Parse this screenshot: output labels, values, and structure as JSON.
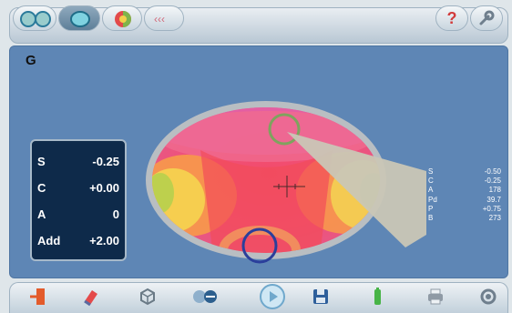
{
  "view": {
    "eye": "G"
  },
  "params": [
    {
      "key": "S",
      "value": "-0.25"
    },
    {
      "key": "C",
      "value": "+0.00"
    },
    {
      "key": "A",
      "value": "0"
    },
    {
      "key": "Add",
      "value": "+2.00"
    }
  ],
  "stats": [
    {
      "key": "S",
      "value": "-0.50"
    },
    {
      "key": "C",
      "value": "-0.25"
    },
    {
      "key": "A",
      "value": "178"
    },
    {
      "key": "Pd",
      "value": "39.7"
    },
    {
      "key": "P",
      "value": "+0.75"
    },
    {
      "key": "B",
      "value": "273"
    }
  ],
  "toolbar": {
    "help_label": "?"
  },
  "colors": {
    "panel": "#5e86b5",
    "params_bg": "#0e2a4a",
    "accent_help": "#d23c3c"
  }
}
